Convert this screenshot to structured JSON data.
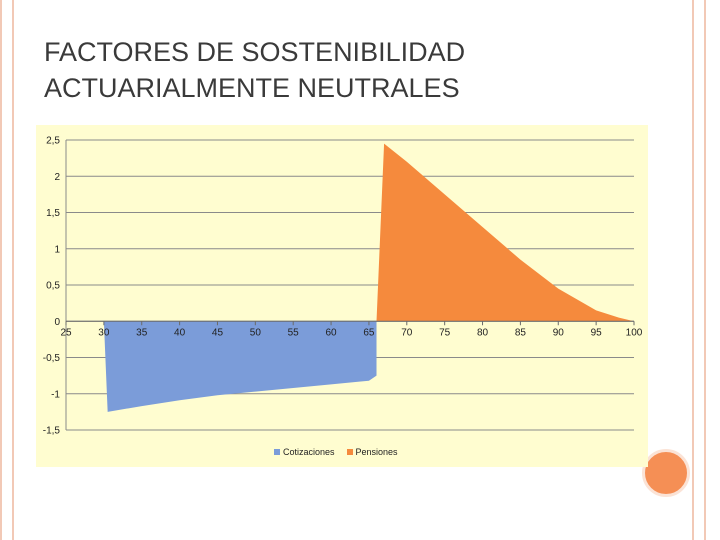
{
  "slide": {
    "title": "FACTORES DE SOSTENIBILIDAD\nACTUARIALMENTE NEUTRALES"
  },
  "colors": {
    "cotizaciones": "#7b9cd9",
    "pensiones": "#f58a3d",
    "plot_bg": "#fffdd0",
    "accent": "#f58f55"
  },
  "chart_data": {
    "type": "area",
    "title": "",
    "xlabel": "",
    "ylabel": "",
    "x_ticks": [
      "25",
      "30",
      "35",
      "40",
      "45",
      "50",
      "55",
      "60",
      "65",
      "70",
      "75",
      "80",
      "85",
      "90",
      "95",
      "100"
    ],
    "y_ticks": [
      "2,5",
      "2",
      "1,5",
      "1",
      "0,5",
      "0",
      "-0,5",
      "-1",
      "-1,5"
    ],
    "y_tick_values": [
      2.5,
      2,
      1.5,
      1,
      0.5,
      0,
      -0.5,
      -1,
      -1.5
    ],
    "xlim": [
      25,
      100
    ],
    "ylim": [
      -1.5,
      2.5
    ],
    "grid": "horizontal",
    "legend_position": "bottom",
    "series": [
      {
        "name": "Cotizaciones",
        "x": [
          30,
          30.5,
          35,
          40,
          45,
          50,
          55,
          60,
          65,
          66
        ],
        "y": [
          0,
          -1.25,
          -1.17,
          -1.09,
          -1.02,
          -0.97,
          -0.92,
          -0.87,
          -0.82,
          -0.75
        ]
      },
      {
        "name": "Pensiones",
        "x": [
          66,
          67,
          70,
          75,
          80,
          85,
          90,
          95,
          98,
          100
        ],
        "y": [
          0,
          2.45,
          2.2,
          1.75,
          1.3,
          0.85,
          0.45,
          0.15,
          0.05,
          0
        ]
      }
    ]
  }
}
